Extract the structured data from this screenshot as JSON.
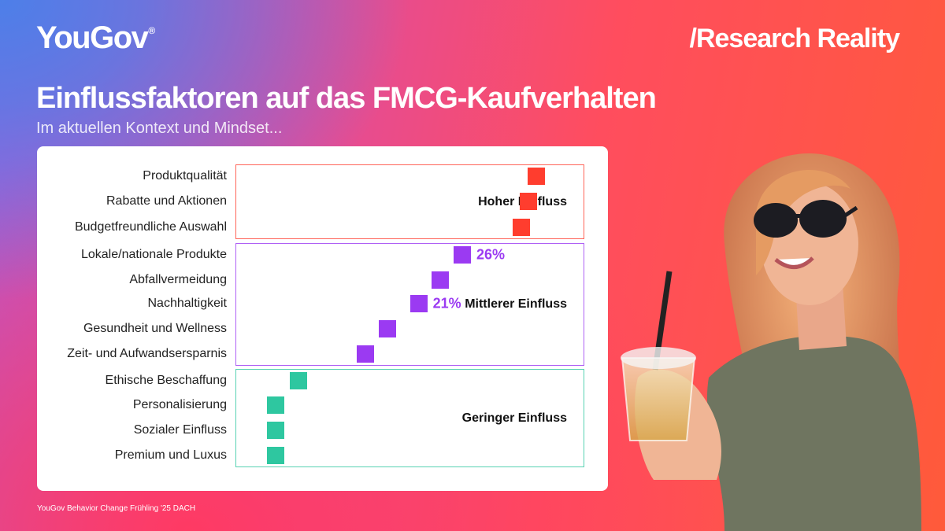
{
  "brand": {
    "logo": "YouGov",
    "logo_mark": "®",
    "tagline": "/Research Reality"
  },
  "header": {
    "title": "Einflussfaktoren auf das FMCG-Kaufverhalten",
    "subtitle": "Im aktuellen Kontext und Mindset..."
  },
  "footer": {
    "source": "YouGov Behavior Change Frühling '25 DACH"
  },
  "colors": {
    "high": "#ff3d2e",
    "medium": "#9b3af2",
    "low": "#2ec7a0"
  },
  "chart_data": {
    "type": "scatter",
    "title": "Einflussfaktoren auf das FMCG-Kaufverhalten",
    "subtitle": "Im aktuellen Kontext und Mindset...",
    "xlim": [
      0,
      40
    ],
    "grid": false,
    "groups": [
      {
        "label": "Hoher Einfluss",
        "color": "#ff3d2e",
        "start": 0,
        "end": 2
      },
      {
        "label": "Mittlerer Einfluss",
        "color": "#9b3af2",
        "start": 3,
        "end": 7
      },
      {
        "label": "Geringer Einfluss",
        "color": "#2ec7a0",
        "start": 8,
        "end": 11
      }
    ],
    "items": [
      {
        "label": "Produktqualität",
        "value": 34.5,
        "group": "high"
      },
      {
        "label": "Rabatte und Aktionen",
        "value": 33.6,
        "group": "high"
      },
      {
        "label": "Budgetfreundliche Auswahl",
        "value": 32.8,
        "group": "high"
      },
      {
        "label": "Lokale/nationale Produkte",
        "value": 26,
        "group": "medium",
        "data_label": "26%"
      },
      {
        "label": "Abfallvermeidung",
        "value": 23.5,
        "group": "medium"
      },
      {
        "label": "Nachhaltigkeit",
        "value": 21,
        "group": "medium",
        "data_label": "21%"
      },
      {
        "label": "Gesundheit und Wellness",
        "value": 17.4,
        "group": "medium"
      },
      {
        "label": "Zeit- und Aufwandsersparnis",
        "value": 14.9,
        "group": "medium"
      },
      {
        "label": "Ethische Beschaffung",
        "value": 7.2,
        "group": "low"
      },
      {
        "label": "Personalisierung",
        "value": 4.6,
        "group": "low"
      },
      {
        "label": "Sozialer Einfluss",
        "value": 4.6,
        "group": "low"
      },
      {
        "label": "Premium und Luxus",
        "value": 4.6,
        "group": "low"
      }
    ]
  }
}
